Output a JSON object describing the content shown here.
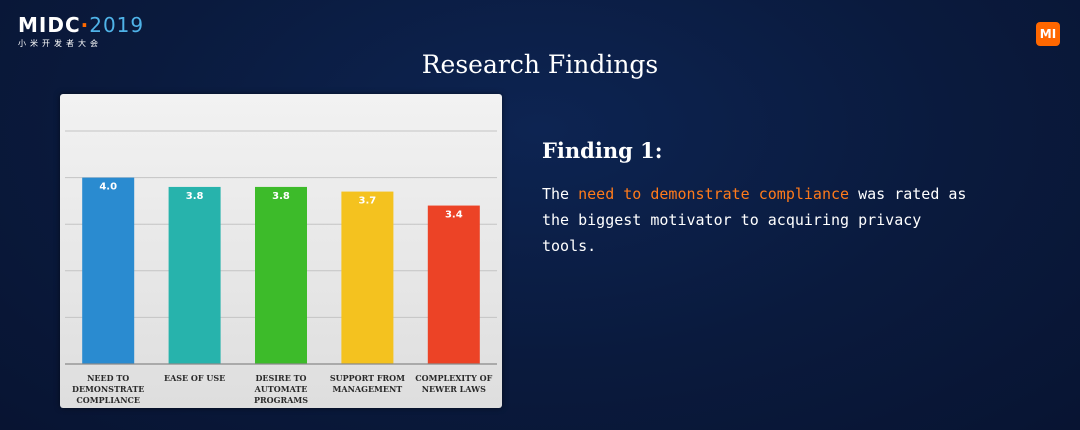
{
  "brand": {
    "logo_text": "MIDC",
    "logo_year": "2019",
    "logo_subtitle": "小米开发者大会",
    "badge_text": "MI"
  },
  "slide": {
    "title": "Research Findings"
  },
  "finding": {
    "heading": "Finding 1:",
    "text_before": "The ",
    "highlight": "need to demonstrate compliance",
    "text_after": " was rated as the biggest motivator to acquiring privacy tools.",
    "highlight_color": "#ff7a1a"
  },
  "chart_data": {
    "type": "bar",
    "categories": [
      [
        "NEED TO",
        "DEMONSTRATE",
        "COMPLIANCE"
      ],
      [
        "EASE OF USE"
      ],
      [
        "DESIRE TO",
        "AUTOMATE",
        "PROGRAMS"
      ],
      [
        "SUPPORT FROM",
        "MANAGEMENT"
      ],
      [
        "COMPLEXITY OF",
        "NEWER LAWS"
      ]
    ],
    "values": [
      4.0,
      3.8,
      3.8,
      3.7,
      3.4
    ],
    "value_labels": [
      "4.0",
      "3.8",
      "3.8",
      "3.7",
      "3.4"
    ],
    "colors": [
      "#2a8bd0",
      "#27b3ac",
      "#3dbb2a",
      "#f4c21f",
      "#ec4326"
    ],
    "ylim": [
      0,
      5
    ],
    "grid": true,
    "legend": "none"
  }
}
